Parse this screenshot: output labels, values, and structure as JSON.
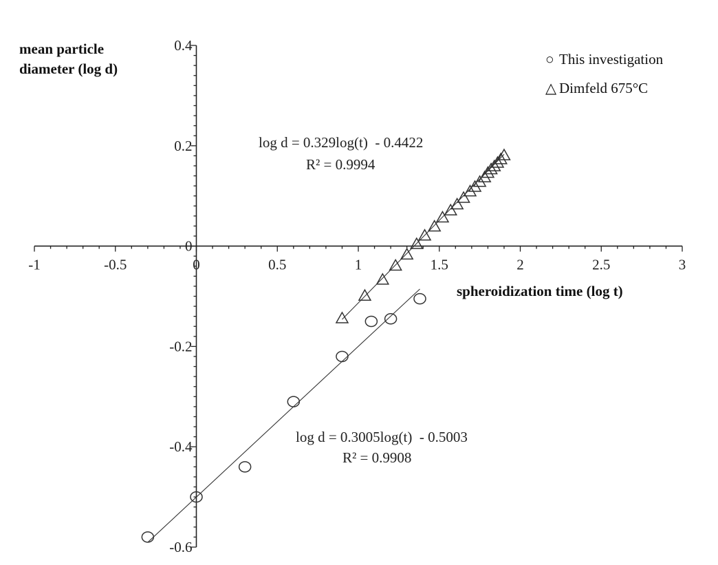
{
  "chart_data": {
    "type": "scatter",
    "xlabel": "spheroidization time (log t)",
    "ylabel_lines": [
      "mean particle",
      "diameter (log d)"
    ],
    "xlim": [
      -1,
      3
    ],
    "ylim": [
      -0.6,
      0.4
    ],
    "x_major_ticks": [
      -1,
      -0.5,
      0,
      0.5,
      1,
      1.5,
      2,
      2.5,
      3
    ],
    "x_tick_labels": [
      "-1",
      "-0.5",
      "0",
      "0.5",
      "1",
      "1.5",
      "2",
      "2.5",
      "3"
    ],
    "x_minor_step": 0.1,
    "y_major_ticks": [
      -0.6,
      -0.4,
      -0.2,
      0,
      0.2,
      0.4
    ],
    "y_tick_labels": [
      "-0.6",
      "-0.4",
      "-0.2",
      "0",
      "0.2",
      "0.4"
    ],
    "y_minor_step": 0.02,
    "legend_position": "top-right",
    "grid": false,
    "series": [
      {
        "name": "This investigation",
        "marker": "circle",
        "legend_symbol": "○",
        "points": [
          [
            -0.3,
            -0.58
          ],
          [
            0.0,
            -0.5
          ],
          [
            0.3,
            -0.44
          ],
          [
            0.6,
            -0.31
          ],
          [
            0.9,
            -0.22
          ],
          [
            1.08,
            -0.15
          ],
          [
            1.2,
            -0.145
          ],
          [
            1.38,
            -0.105
          ]
        ],
        "fit": {
          "slope": 0.3005,
          "intercept": -0.5003,
          "x_range": [
            -0.3,
            1.38
          ],
          "equation": "log d = 0.3005log(t)  - 0.5003",
          "r2": "R² = 0.9908"
        }
      },
      {
        "name": "Dimfeld 675°C",
        "marker": "triangle",
        "legend_symbol": "△",
        "points": [
          [
            0.9,
            -0.145
          ],
          [
            1.04,
            -0.1
          ],
          [
            1.15,
            -0.068
          ],
          [
            1.23,
            -0.04
          ],
          [
            1.3,
            -0.018
          ],
          [
            1.36,
            0.003
          ],
          [
            1.41,
            0.02
          ],
          [
            1.47,
            0.038
          ],
          [
            1.52,
            0.056
          ],
          [
            1.57,
            0.07
          ],
          [
            1.61,
            0.082
          ],
          [
            1.65,
            0.095
          ],
          [
            1.69,
            0.108
          ],
          [
            1.72,
            0.117
          ],
          [
            1.75,
            0.127
          ],
          [
            1.78,
            0.136
          ],
          [
            1.8,
            0.145
          ],
          [
            1.82,
            0.152
          ],
          [
            1.84,
            0.158
          ],
          [
            1.86,
            0.165
          ],
          [
            1.88,
            0.172
          ],
          [
            1.9,
            0.18
          ]
        ],
        "fit": {
          "slope": 0.329,
          "intercept": -0.4422,
          "x_range": [
            0.9,
            1.9
          ],
          "equation": "log d = 0.329log(t)  - 0.4422",
          "r2": "R² = 0.9994"
        }
      }
    ]
  }
}
